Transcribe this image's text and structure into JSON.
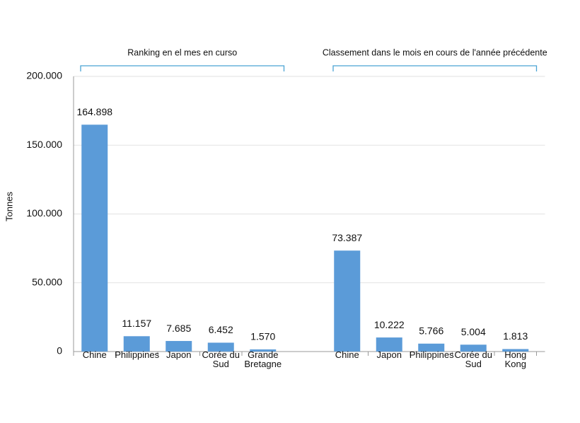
{
  "chart_data": {
    "type": "bar",
    "y_label": "Tonnes",
    "annotations": [
      "Ranking en el mes en curso",
      "Classement dans le mois en cours de l'année précédente"
    ],
    "categories": [
      "Chine",
      "Philippines",
      "Japon",
      "Corée du Sud",
      "Grande Bretagne",
      null,
      "Chine",
      "Japon",
      "Philippines",
      "Corée du Sud",
      "Hong Kong"
    ],
    "values": [
      164898,
      11157,
      7685,
      6452,
      1570,
      null,
      73387,
      10222,
      5766,
      5004,
      1813
    ],
    "value_labels": [
      "164.898",
      "11.157",
      "7.685",
      "6.452",
      "1.570",
      null,
      "73.387",
      "10.222",
      "5.766",
      "5.004",
      "1.813"
    ],
    "color": "#5b9bd8",
    "ylim": [
      0,
      200000
    ],
    "yticks": [
      0,
      {
        "value": 50000,
        "label": "50.000"
      },
      {
        "value": 100000,
        "label": "100.000"
      },
      {
        "value": 150000,
        "label": "150.000"
      },
      {
        "value": 200000,
        "label": "200.000"
      }
    ],
    "grid": true
  }
}
